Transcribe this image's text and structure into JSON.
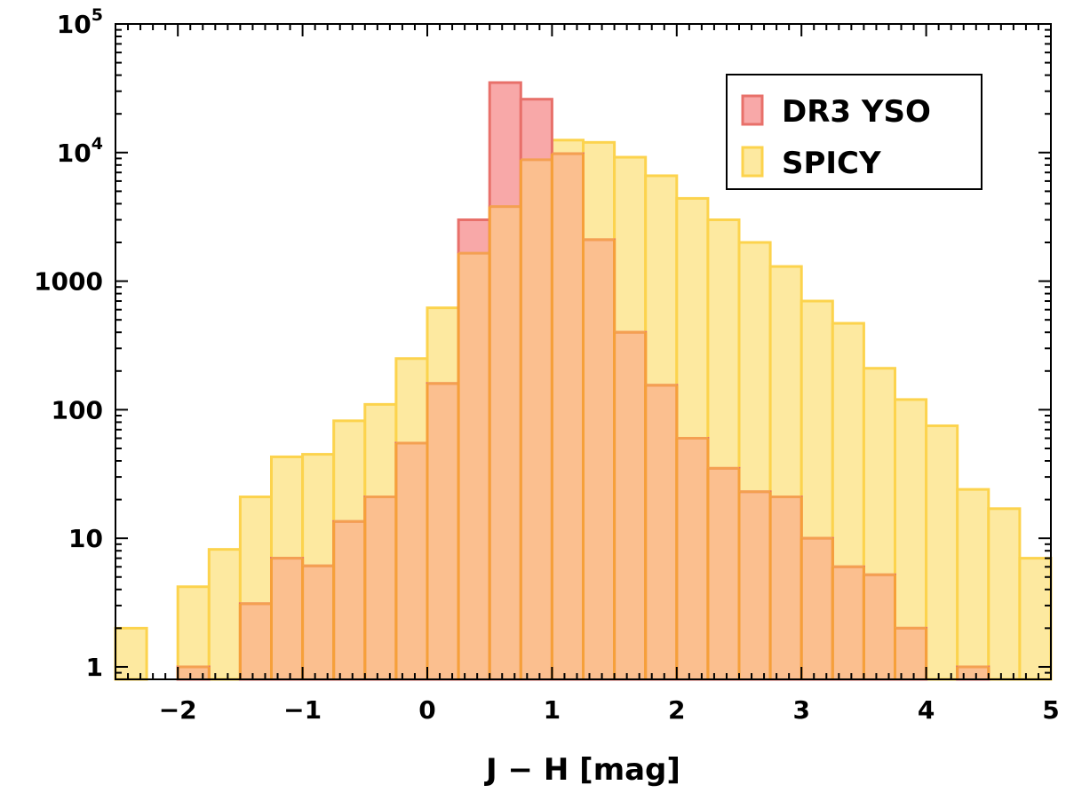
{
  "chart_data": {
    "type": "bar",
    "subtype": "overlaid-histogram",
    "title": "",
    "xlabel": "J − H [mag]",
    "ylabel": "",
    "xlim": [
      -2.5,
      5.0
    ],
    "ylim": [
      0.8,
      100000
    ],
    "yscale": "log",
    "bin_width": 0.25,
    "bin_edges_start": -2.5,
    "x_ticks": [
      -2,
      -1,
      0,
      1,
      2,
      3,
      4,
      5
    ],
    "x_tick_labels": [
      "−2",
      "−1",
      "0",
      "1",
      "2",
      "3",
      "4",
      "5"
    ],
    "y_ticks": [
      1,
      10,
      100,
      1000,
      10000,
      100000
    ],
    "y_tick_labels": [
      {
        "base": "1",
        "exp": ""
      },
      {
        "base": "10",
        "exp": ""
      },
      {
        "base": "100",
        "exp": ""
      },
      {
        "base": "1000",
        "exp": ""
      },
      {
        "base": "10",
        "exp": "4"
      },
      {
        "base": "10",
        "exp": "5"
      }
    ],
    "grid": false,
    "legend_position": "top-right",
    "series": [
      {
        "name": "DR3 YSO",
        "fill": "#f8a8a8",
        "stroke": "#e8706a",
        "values": [
          0,
          0,
          1,
          0,
          3.1,
          7,
          6.1,
          13.5,
          21,
          55,
          160,
          3000,
          35000,
          26000,
          9800,
          2100,
          400,
          155,
          60,
          35,
          23,
          21,
          10,
          6,
          5.2,
          2,
          0,
          1,
          0,
          0
        ]
      },
      {
        "name": "SPICY",
        "fill": "#fde9a0",
        "stroke": "#fcd34d",
        "values": [
          2,
          0,
          4.2,
          8.2,
          21,
          43,
          45,
          82,
          110,
          250,
          620,
          1650,
          3800,
          8800,
          12500,
          12000,
          9200,
          6600,
          4400,
          3000,
          2000,
          1300,
          700,
          470,
          210,
          120,
          75,
          24,
          17,
          7
        ]
      }
    ]
  }
}
